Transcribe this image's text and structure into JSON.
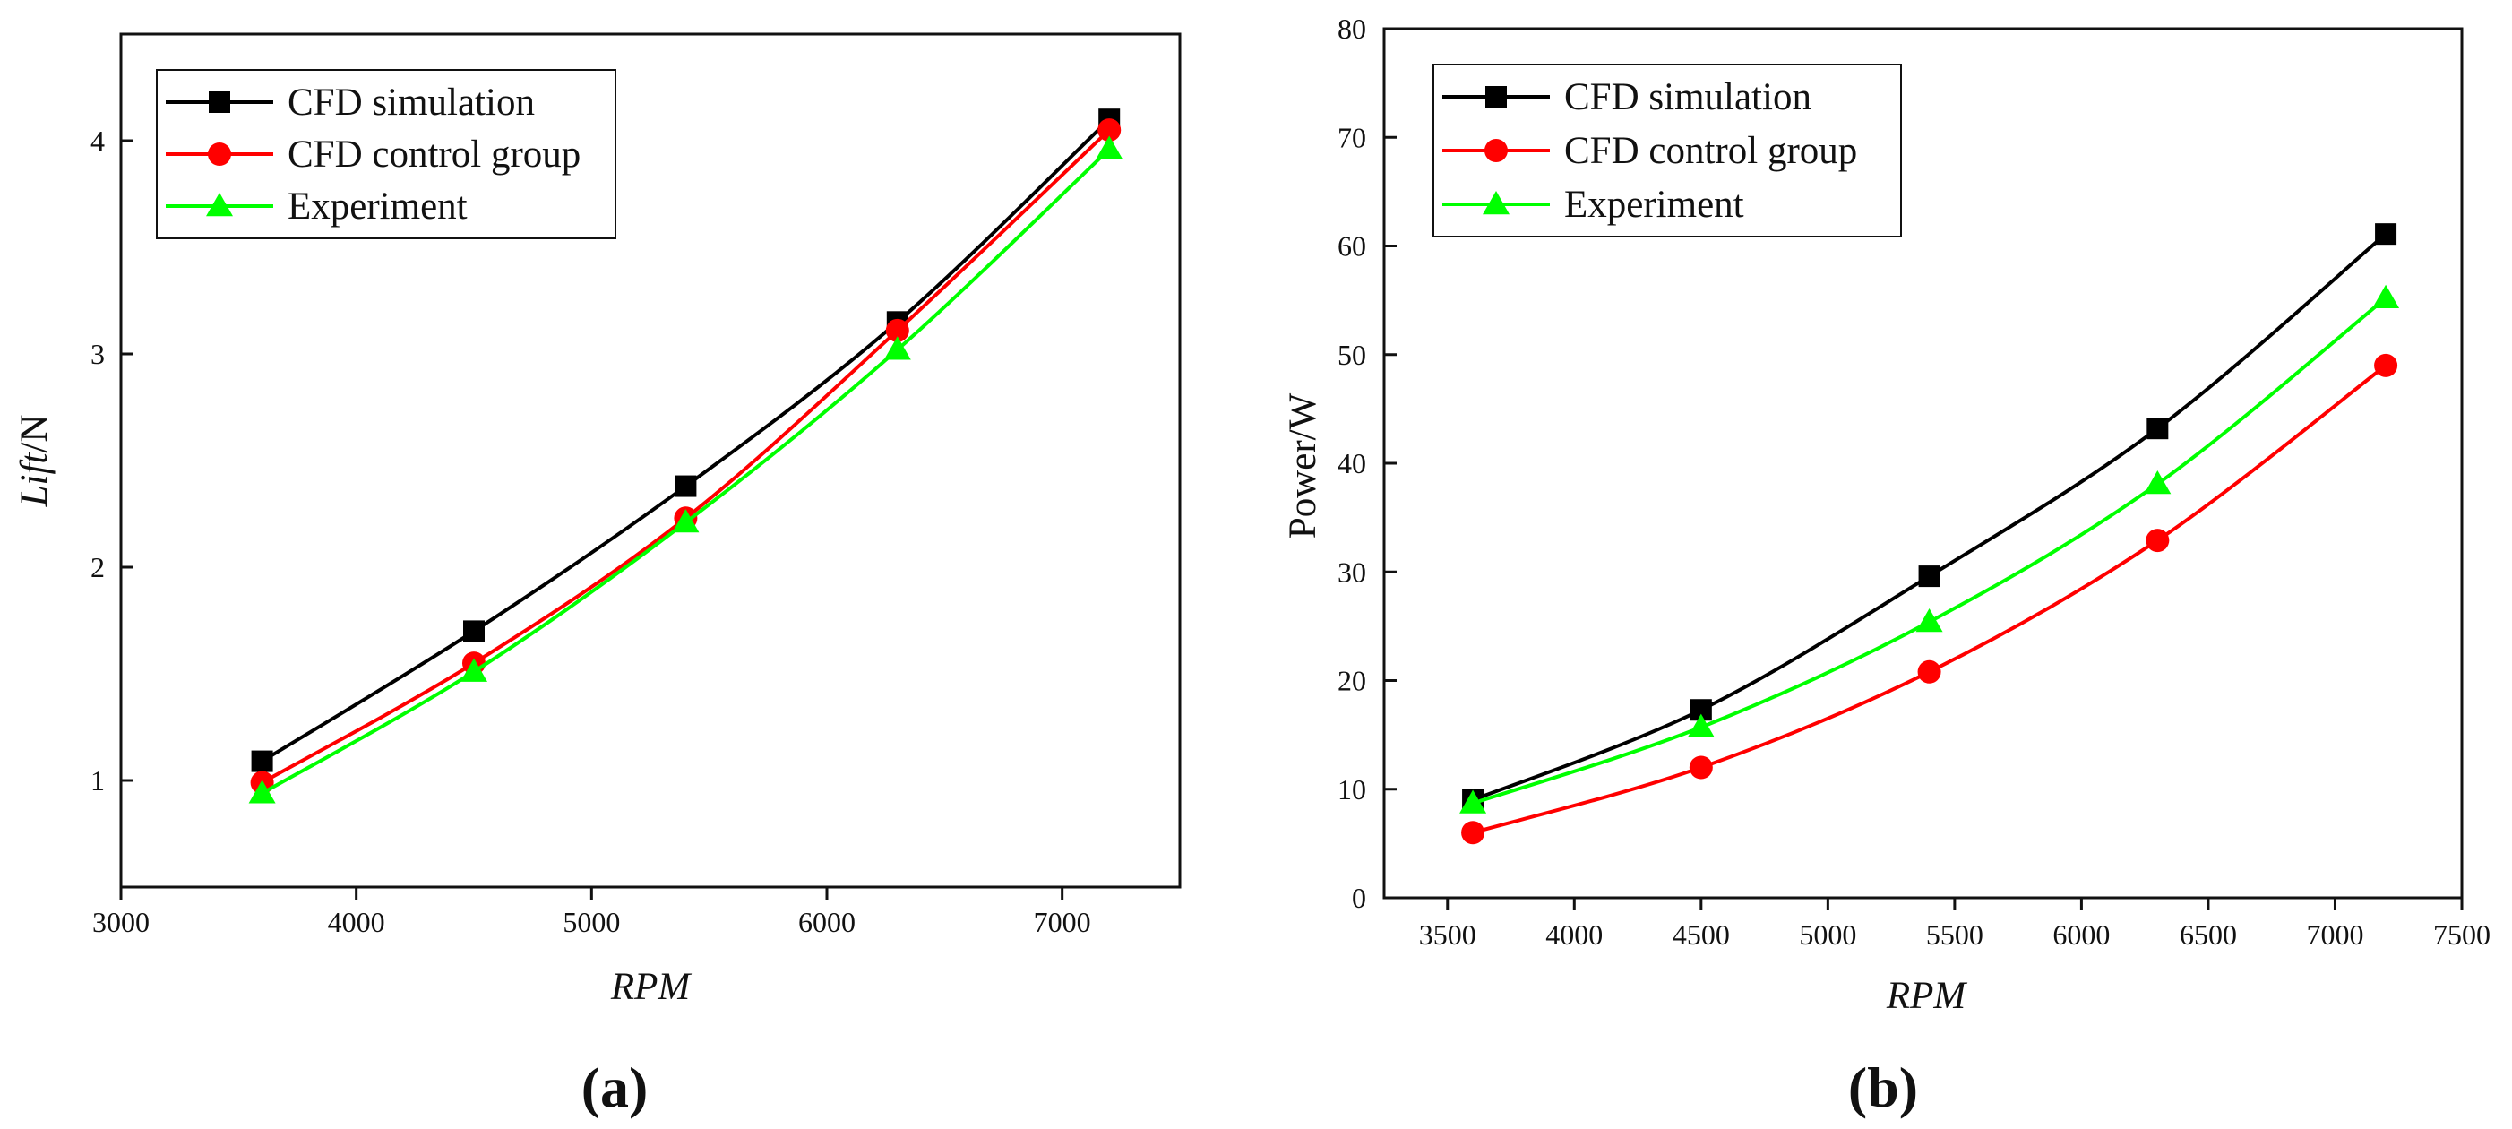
{
  "chart_data": [
    {
      "type": "line",
      "panel_label": "(a)",
      "xlabel": "RPM",
      "ylabel": {
        "italic_part": "Lift",
        "rest": "/N"
      },
      "xlim": [
        3000,
        7500
      ],
      "ylim": [
        0.5,
        4.5
      ],
      "xticks": [
        3000,
        4000,
        5000,
        6000,
        7000
      ],
      "yticks": [
        1,
        2,
        3,
        4
      ],
      "legend_position": "top-left",
      "x": [
        3600,
        4500,
        5400,
        6300,
        7200
      ],
      "series": [
        {
          "name": "CFD simulation",
          "color": "#000000",
          "marker": "square",
          "values": [
            1.09,
            1.7,
            2.38,
            3.15,
            4.1
          ]
        },
        {
          "name": "CFD control group",
          "color": "#ff0000",
          "marker": "circle",
          "values": [
            0.99,
            1.55,
            2.23,
            3.11,
            4.05
          ]
        },
        {
          "name": "Experiment",
          "color": "#00ff00",
          "marker": "triangle",
          "values": [
            0.94,
            1.51,
            2.21,
            3.02,
            3.96
          ]
        }
      ]
    },
    {
      "type": "line",
      "panel_label": "(b)",
      "xlabel": "RPM",
      "ylabel": {
        "italic_part": "",
        "rest": "Power/W"
      },
      "xlim": [
        3250,
        7500
      ],
      "ylim": [
        0,
        80
      ],
      "xticks": [
        3500,
        4000,
        4500,
        5000,
        5500,
        6000,
        6500,
        7000,
        7500
      ],
      "yticks": [
        0,
        10,
        20,
        30,
        40,
        50,
        60,
        70,
        80
      ],
      "legend_position": "top-left",
      "x": [
        3600,
        4500,
        5400,
        6300,
        7200
      ],
      "series": [
        {
          "name": "CFD simulation",
          "color": "#000000",
          "marker": "square",
          "values": [
            9.0,
            17.3,
            29.6,
            43.2,
            61.1
          ]
        },
        {
          "name": "CFD control group",
          "color": "#ff0000",
          "marker": "circle",
          "values": [
            6.0,
            12.0,
            20.8,
            32.9,
            49.0
          ]
        },
        {
          "name": "Experiment",
          "color": "#00ff00",
          "marker": "triangle",
          "values": [
            8.7,
            15.7,
            25.4,
            38.1,
            55.2
          ]
        }
      ]
    }
  ]
}
